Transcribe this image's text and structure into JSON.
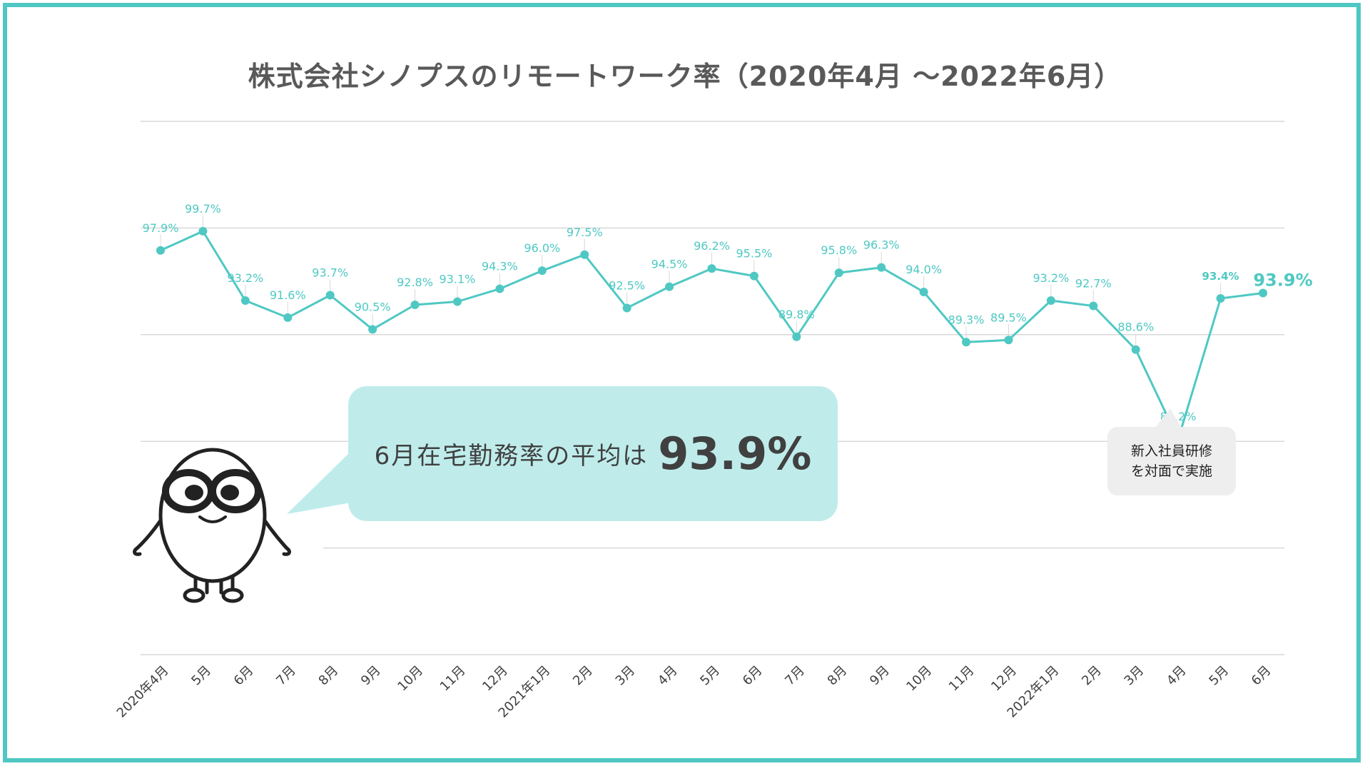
{
  "title": "株式会社シノプスのリモートワーク率（2020年4月 〜2022年6月）",
  "colors": {
    "accent": "#4fc8c3",
    "bubble": "#bfeceb",
    "note": "#eeeeee",
    "frame": "#4fc8c3"
  },
  "chart_data": {
    "type": "line",
    "title": "株式会社シノプスのリモートワーク率（2020年4月 〜2022年6月）",
    "categories": [
      "2020年4月",
      "5月",
      "6月",
      "7月",
      "8月",
      "9月",
      "10月",
      "11月",
      "12月",
      "2021年1月",
      "2月",
      "3月",
      "4月",
      "5月",
      "6月",
      "7月",
      "8月",
      "9月",
      "10月",
      "11月",
      "12月",
      "2022年1月",
      "2月",
      "3月",
      "4月",
      "5月",
      "6月"
    ],
    "series": [
      {
        "values": [
          97.9,
          99.7,
          93.2,
          91.6,
          93.7,
          90.5,
          92.8,
          93.1,
          94.3,
          96.0,
          97.5,
          92.5,
          94.5,
          96.2,
          95.5,
          89.8,
          95.8,
          96.3,
          94.0,
          89.3,
          89.5,
          93.2,
          92.7,
          88.6,
          80.2,
          93.4,
          93.9
        ],
        "labels": [
          "97.9%",
          "99.7%",
          "93.2%",
          "91.6%",
          "93.7%",
          "90.5%",
          "92.8%",
          "93.1%",
          "94.3%",
          "96.0%",
          "97.5%",
          "92.5%",
          "94.5%",
          "96.2%",
          "95.5%",
          "89.8%",
          "95.8%",
          "96.3%",
          "94.0%",
          "89.3%",
          "89.5%",
          "93.2%",
          "92.7%",
          "88.6%",
          "80.2%",
          "93.4%",
          "93.9%"
        ]
      }
    ],
    "ylim": [
      60,
      110
    ],
    "grid": true,
    "legend": "none"
  },
  "callout": {
    "text": "6月在宅勤務率の平均は",
    "value": "93.9%"
  },
  "note": {
    "text": "新入社員研修\nを対面で実施"
  }
}
